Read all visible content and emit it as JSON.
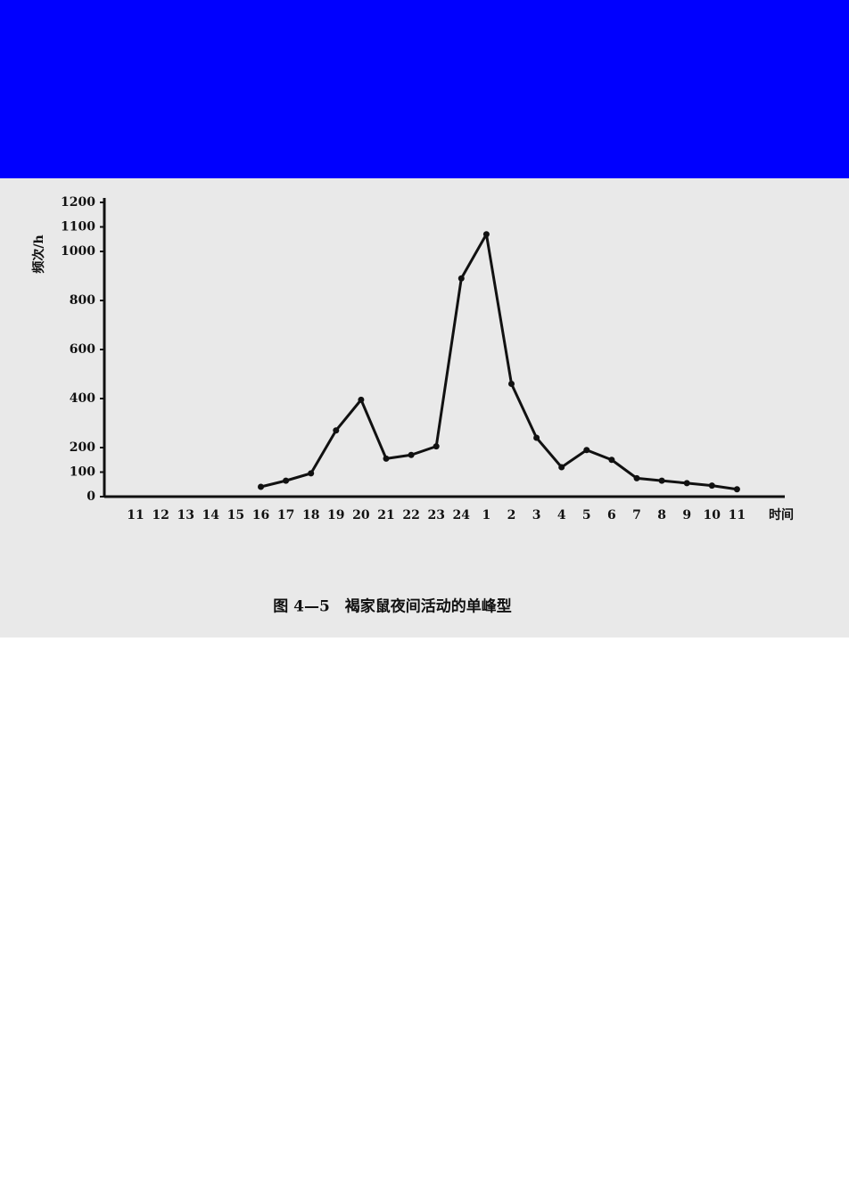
{
  "chart_data": {
    "type": "line",
    "title": "图 4—5　褐家鼠夜间活动的单峰型",
    "x_label": "时间",
    "y_label": "频次/h",
    "categories": [
      "11",
      "12",
      "13",
      "14",
      "15",
      "16",
      "17",
      "18",
      "19",
      "20",
      "21",
      "22",
      "23",
      "24",
      "1",
      "2",
      "3",
      "4",
      "5",
      "6",
      "7",
      "8",
      "9",
      "10",
      "11"
    ],
    "series": [
      {
        "name": "褐家鼠",
        "color": "#111111",
        "values": [
          null,
          null,
          null,
          null,
          null,
          40,
          65,
          95,
          270,
          395,
          155,
          170,
          205,
          890,
          1070,
          460,
          240,
          120,
          190,
          150,
          75,
          65,
          55,
          45,
          30
        ]
      }
    ],
    "ylim": [
      0,
      1200
    ],
    "yticks": [
      0,
      100,
      200,
      400,
      600,
      800,
      1000,
      1100,
      1200
    ],
    "grid": false
  }
}
